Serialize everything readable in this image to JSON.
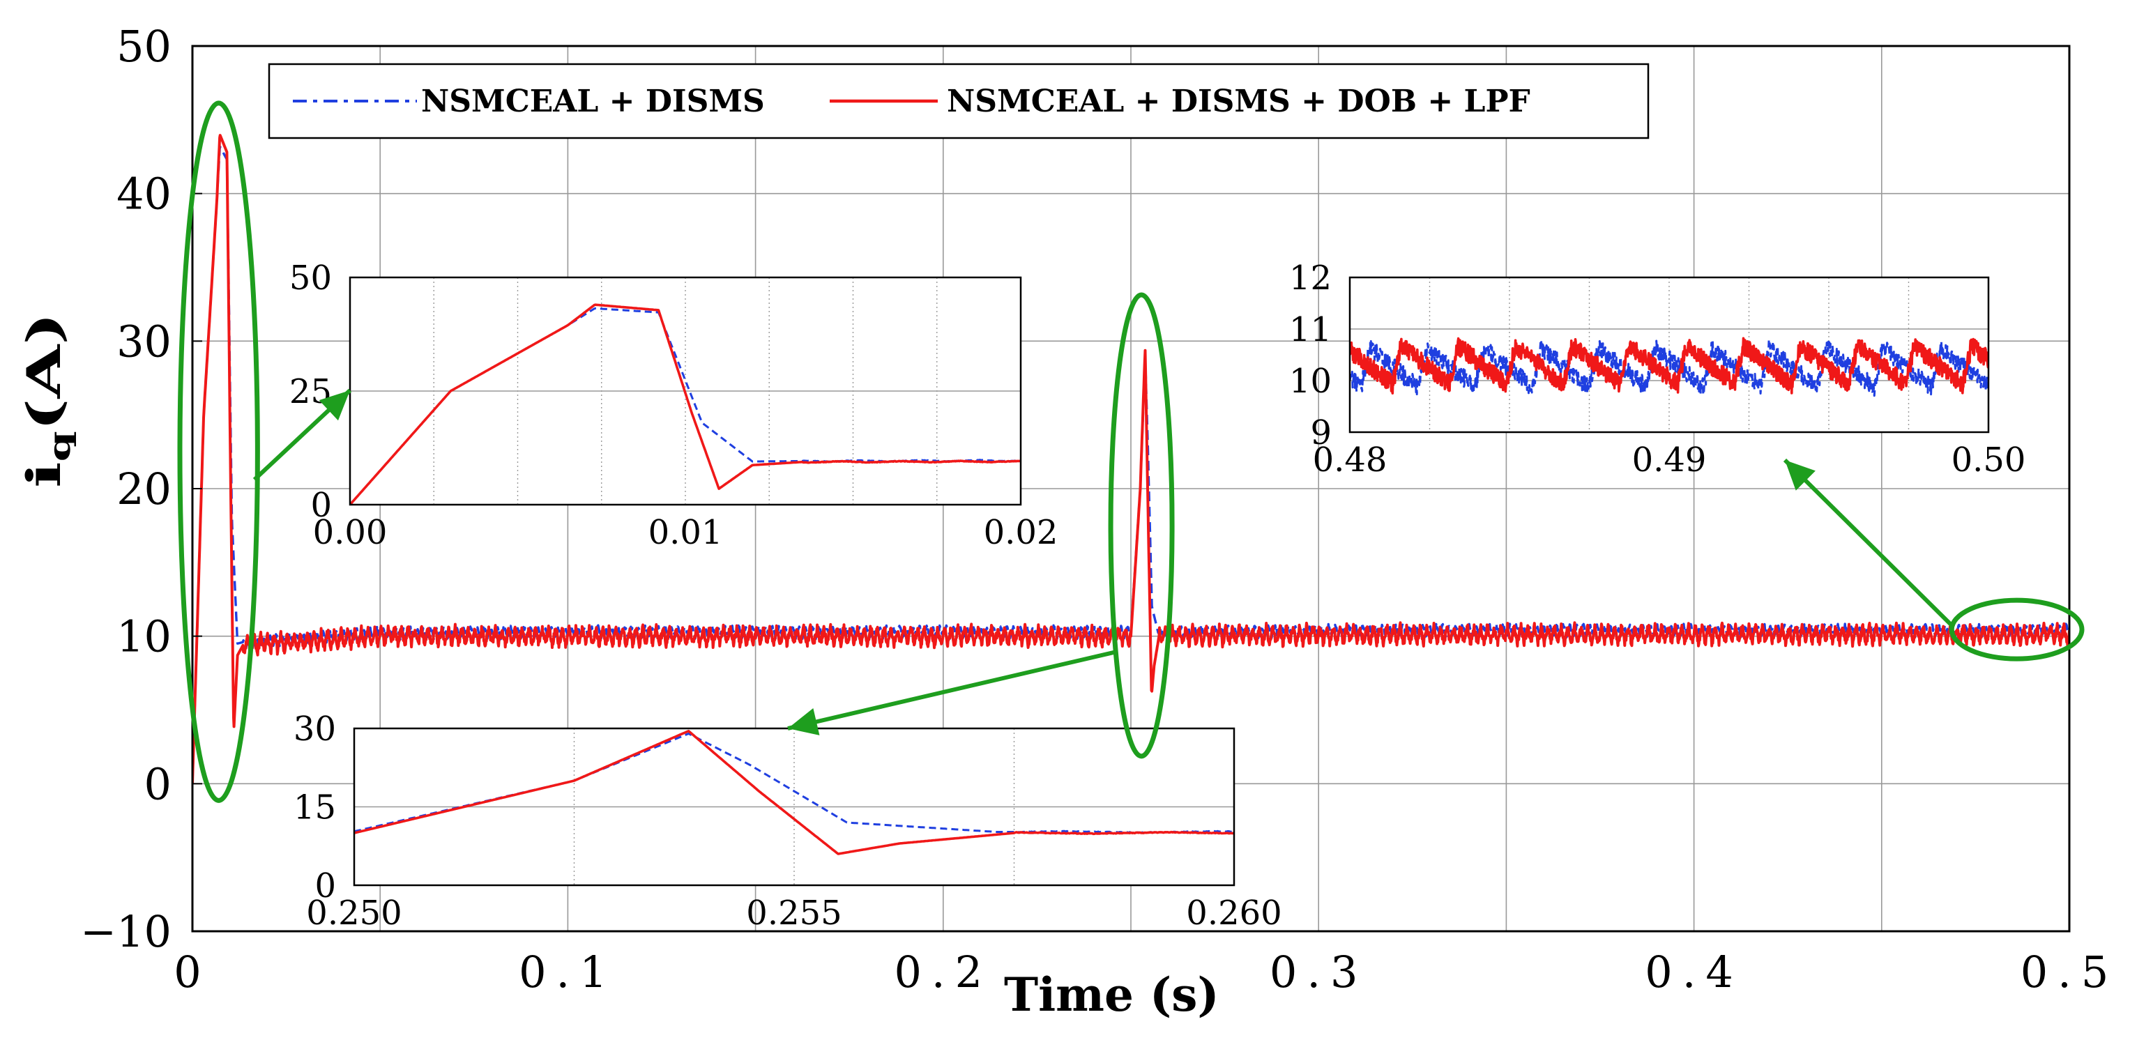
{
  "chart_data": {
    "type": "line",
    "xlabel": "Time (s)",
    "ylabel": "iq(A)",
    "ylabel_main": "i",
    "ylabel_sub": "q",
    "ylabel_unit": "(A)",
    "xlim": [
      0,
      0.5
    ],
    "ylim": [
      -10,
      50
    ],
    "x_ticks": [
      0,
      0.05,
      0.1,
      0.15,
      0.2,
      0.25,
      0.3,
      0.35,
      0.4,
      0.45,
      0.5
    ],
    "x_tick_labels": [
      "0",
      "0.1",
      "0.2",
      "0.3",
      "0.4",
      "0.5"
    ],
    "x_tick_label_values": [
      0,
      0.1,
      0.2,
      0.3,
      0.4,
      0.5
    ],
    "y_ticks": [
      -10,
      0,
      10,
      20,
      30,
      40,
      50
    ],
    "y_tick_labels": [
      "−10",
      "0",
      "10",
      "20",
      "30",
      "40",
      "50"
    ],
    "grid": true,
    "legend_position": "top-left",
    "series": [
      {
        "name": "NSMCEAL + DISMS",
        "color": "#1f3fe0",
        "style": "dashed",
        "points": [
          [
            0.0,
            0.0
          ],
          [
            0.003,
            25.0
          ],
          [
            0.0065,
            39.5
          ],
          [
            0.0073,
            43.2
          ],
          [
            0.0092,
            42.3
          ],
          [
            0.0105,
            18.0
          ],
          [
            0.012,
            9.5
          ],
          [
            0.0135,
            9.6
          ],
          [
            0.05,
            10.2
          ],
          [
            0.1,
            10.3
          ],
          [
            0.15,
            10.3
          ],
          [
            0.2,
            10.3
          ],
          [
            0.25,
            10.3
          ],
          [
            0.2525,
            20.0
          ],
          [
            0.2538,
            29.0
          ],
          [
            0.2545,
            23.0
          ],
          [
            0.2556,
            12.0
          ],
          [
            0.2573,
            10.2
          ],
          [
            0.3,
            10.4
          ],
          [
            0.35,
            10.4
          ],
          [
            0.4,
            10.4
          ],
          [
            0.45,
            10.4
          ],
          [
            0.5,
            10.4
          ]
        ],
        "ripple": 0.4
      },
      {
        "name": "NSMCEAL + DISMS + DOB + LPF",
        "color": "#f01818",
        "style": "solid",
        "points": [
          [
            0.0,
            0.0
          ],
          [
            0.003,
            25.0
          ],
          [
            0.0065,
            39.5
          ],
          [
            0.0073,
            44.0
          ],
          [
            0.0092,
            42.8
          ],
          [
            0.0102,
            20.0
          ],
          [
            0.011,
            3.5
          ],
          [
            0.012,
            8.7
          ],
          [
            0.0135,
            9.4
          ],
          [
            0.05,
            10.0
          ],
          [
            0.1,
            10.0
          ],
          [
            0.15,
            10.0
          ],
          [
            0.2,
            10.0
          ],
          [
            0.25,
            10.0
          ],
          [
            0.2525,
            20.0
          ],
          [
            0.2538,
            29.5
          ],
          [
            0.2546,
            18.0
          ],
          [
            0.2555,
            6.0
          ],
          [
            0.2562,
            8.0
          ],
          [
            0.2575,
            10.0
          ],
          [
            0.3,
            10.1
          ],
          [
            0.35,
            10.1
          ],
          [
            0.4,
            10.1
          ],
          [
            0.45,
            10.1
          ],
          [
            0.5,
            10.1
          ]
        ],
        "ripple": 0.7
      }
    ],
    "insets": [
      {
        "name": "inset-startup",
        "xlim": [
          0,
          0.02
        ],
        "ylim": [
          0,
          50
        ],
        "x_ticks": [
          0,
          0.01,
          0.02
        ],
        "x_tick_labels": [
          "0.00",
          "0.01",
          "0.02"
        ],
        "y_ticks": [
          0,
          25,
          50
        ],
        "y_tick_labels": [
          "0",
          "25",
          "50"
        ],
        "x_grid": [
          0.0025,
          0.005,
          0.0075,
          0.01,
          0.0125,
          0.015,
          0.0175
        ],
        "y_grid": [
          25
        ],
        "highlight_x": [
          0,
          0.014
        ],
        "highlight_y": [
          0,
          45
        ]
      },
      {
        "name": "inset-disturbance",
        "xlim": [
          0.25,
          0.26
        ],
        "ylim": [
          0,
          30
        ],
        "x_ticks": [
          0.25,
          0.255,
          0.26
        ],
        "x_tick_labels": [
          "0.250",
          "0.255",
          "0.260"
        ],
        "y_ticks": [
          0,
          15,
          30
        ],
        "y_tick_labels": [
          "0",
          "15",
          "30"
        ],
        "x_grid": [
          0.25,
          0.2525,
          0.255,
          0.2575,
          0.26
        ],
        "y_grid": [
          15
        ],
        "highlight_x": [
          0.2484,
          0.2572
        ],
        "highlight_y": [
          3,
          32
        ]
      },
      {
        "name": "inset-steady",
        "xlim": [
          0.48,
          0.5
        ],
        "ylim": [
          9,
          12
        ],
        "x_ticks": [
          0.48,
          0.49,
          0.5
        ],
        "x_tick_labels": [
          "0.48",
          "0.49",
          "0.50"
        ],
        "y_ticks": [
          9,
          10,
          11,
          12
        ],
        "y_tick_labels": [
          "9",
          "10",
          "11",
          "12"
        ],
        "x_grid": [
          0.4825,
          0.485,
          0.4875,
          0.49,
          0.4925,
          0.495,
          0.4975
        ],
        "y_grid": [
          10,
          11
        ],
        "highlight_x": [
          0.472,
          0.5
        ],
        "highlight_y": [
          9.6,
          11.3
        ]
      }
    ]
  },
  "colors": {
    "annotation": "#1e9e1e",
    "grid": "#999999",
    "frame": "#000000"
  }
}
